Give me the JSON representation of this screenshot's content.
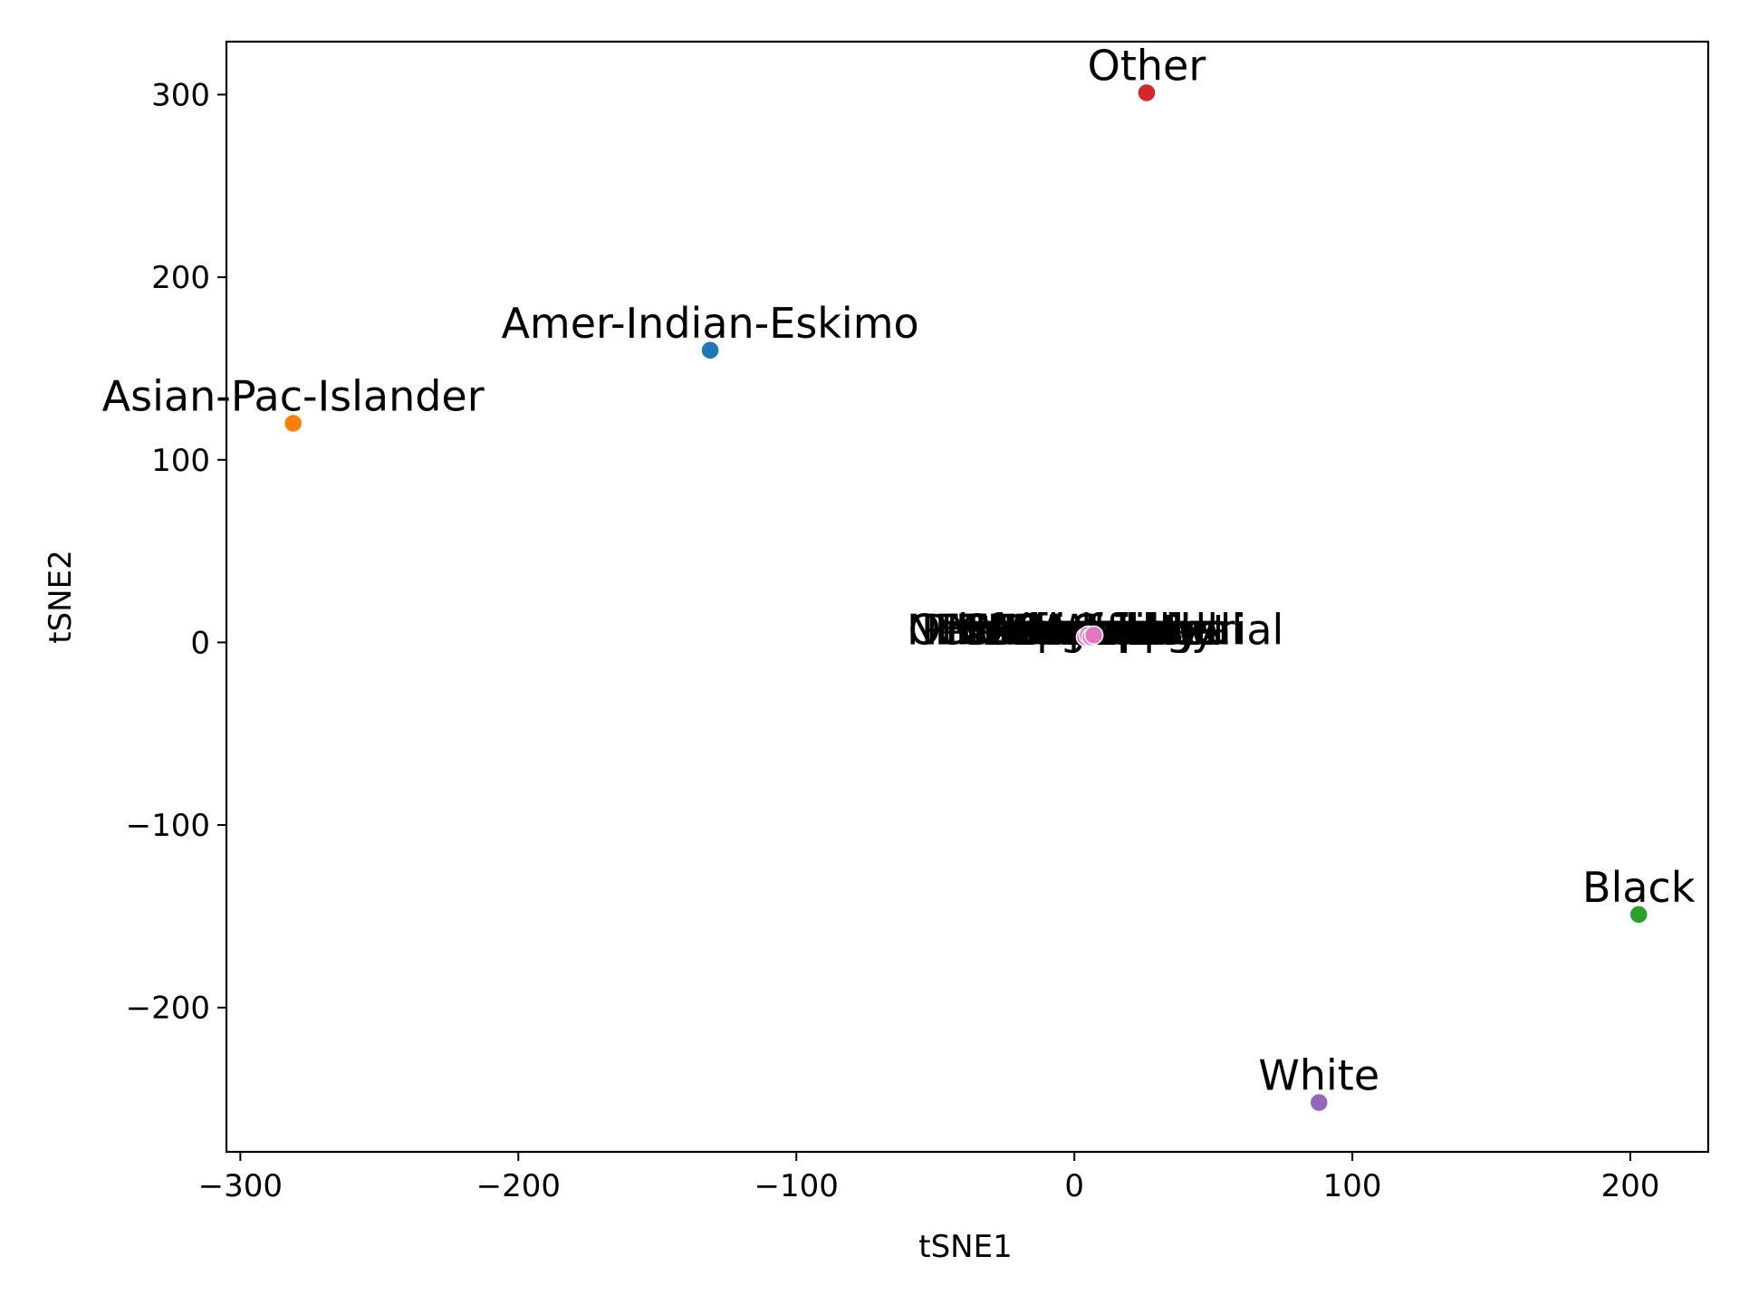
{
  "chart_data": {
    "type": "scatter",
    "xlabel": "tSNE1",
    "ylabel": "tSNE2",
    "xlim": [
      -305,
      228
    ],
    "ylim": [
      -279,
      329
    ],
    "xticks": [
      -300,
      -200,
      -100,
      0,
      100,
      200
    ],
    "yticks": [
      -200,
      -100,
      0,
      100,
      200,
      300
    ],
    "xtick_labels": [
      "−300",
      "−200",
      "−100",
      "0",
      "100",
      "200"
    ],
    "ytick_labels": [
      "−200",
      "−100",
      "0",
      "100",
      "200",
      "300"
    ],
    "grid": false,
    "points": [
      {
        "label": "Amer-Indian-Eskimo",
        "x": -131,
        "y": 160,
        "color": "#1f77b4"
      },
      {
        "label": "Asian-Pac-Islander",
        "x": -281,
        "y": 120,
        "color": "#ff7f0e"
      },
      {
        "label": "Black",
        "x": 203,
        "y": -149,
        "color": "#2ca02c"
      },
      {
        "label": "Other",
        "x": 26,
        "y": 301,
        "color": "#d62728"
      },
      {
        "label": "White",
        "x": 88,
        "y": -252,
        "color": "#9467bd"
      }
    ],
    "cluster_points": [
      {
        "x": 4,
        "y": 3,
        "color": "#e377c2"
      },
      {
        "x": 5,
        "y": 4,
        "color": "#e377c2"
      },
      {
        "x": 6,
        "y": 3,
        "color": "#e377c2"
      },
      {
        "x": 7,
        "y": 4,
        "color": "#e377c2"
      }
    ]
  }
}
